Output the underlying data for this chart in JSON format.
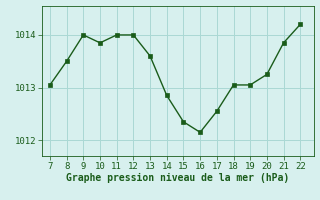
{
  "x": [
    7,
    8,
    9,
    10,
    11,
    12,
    13,
    14,
    15,
    16,
    17,
    18,
    19,
    20,
    21,
    22
  ],
  "y": [
    1013.05,
    1013.5,
    1014.0,
    1013.85,
    1014.0,
    1014.0,
    1013.6,
    1012.85,
    1012.35,
    1012.15,
    1012.55,
    1013.05,
    1013.05,
    1013.25,
    1013.85,
    1014.2
  ],
  "line_color": "#1a5c1a",
  "marker_color": "#1a5c1a",
  "bg_color": "#d7f0ee",
  "grid_color": "#aad8d4",
  "xlabel": "Graphe pression niveau de la mer (hPa)",
  "ylim": [
    1011.7,
    1014.55
  ],
  "yticks": [
    1012,
    1013,
    1014
  ],
  "xlim": [
    6.5,
    22.8
  ],
  "xticks": [
    7,
    8,
    9,
    10,
    11,
    12,
    13,
    14,
    15,
    16,
    17,
    18,
    19,
    20,
    21,
    22
  ]
}
